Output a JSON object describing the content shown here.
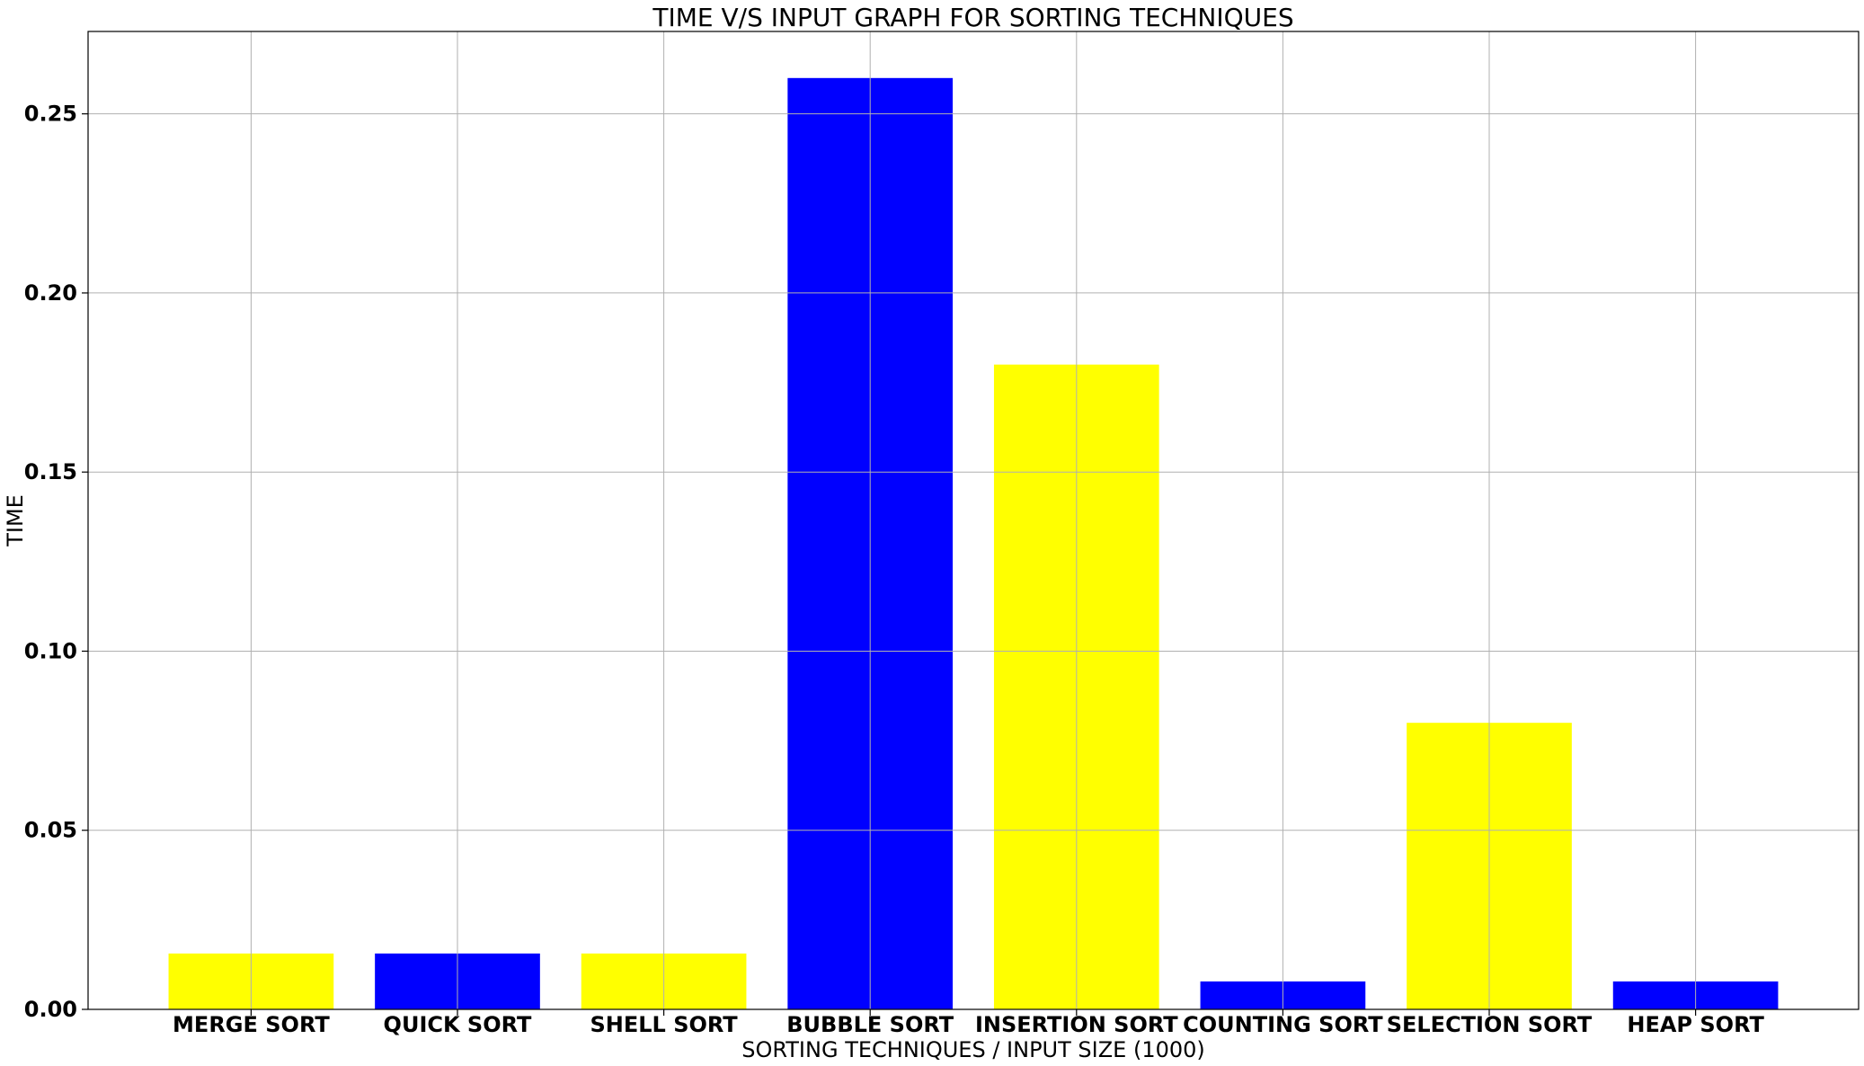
{
  "chart_data": {
    "type": "bar",
    "title": "TIME V/S INPUT GRAPH FOR SORTING TECHNIQUES",
    "xlabel": "SORTING TECHNIQUES / INPUT SIZE (1000)",
    "ylabel": "TIME",
    "categories": [
      "MERGE SORT",
      "QUICK SORT",
      "SHELL SORT",
      "BUBBLE SORT",
      "INSERTION SORT",
      "COUNTING SORT",
      "SELECTION SORT",
      "HEAP SORT"
    ],
    "values": [
      0.0156,
      0.0156,
      0.0156,
      0.26,
      0.18,
      0.0078,
      0.08,
      0.0078
    ],
    "bar_colors": [
      "#ffff00",
      "#0000ff",
      "#ffff00",
      "#0000ff",
      "#ffff00",
      "#0000ff",
      "#ffff00",
      "#0000ff"
    ],
    "ylim": [
      0,
      0.273
    ],
    "yticks": [
      0.0,
      0.05,
      0.1,
      0.15,
      0.2,
      0.25
    ],
    "ytick_labels": [
      "0.00",
      "0.05",
      "0.10",
      "0.15",
      "0.20",
      "0.25"
    ],
    "grid": true,
    "legend": "none"
  }
}
